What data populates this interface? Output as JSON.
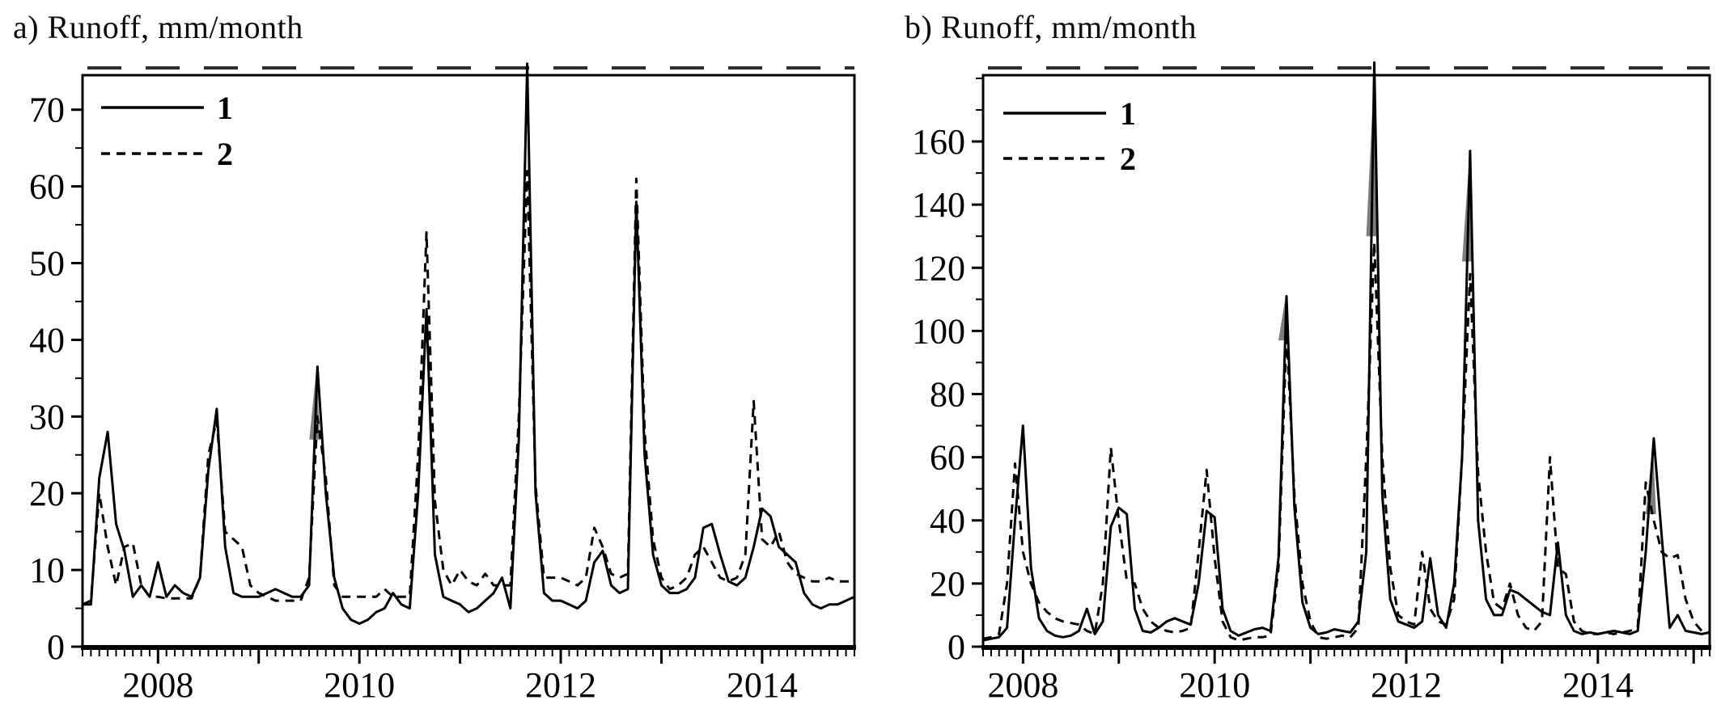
{
  "page": {
    "background": "#ffffff",
    "line_color": "#000000",
    "artifact_color": "#2e2e2e",
    "gray_fill": "#7d7d7d"
  },
  "chart_data": [
    {
      "type": "line",
      "title": "a) Runoff, mm/month",
      "ylabel": "Runoff, mm/month",
      "x_start": 2007.25,
      "x_step_months": 1,
      "x_domain": [
        2007.25,
        2014.917
      ],
      "y_domain": [
        0,
        74.5
      ],
      "y_ticks": [
        0,
        10,
        20,
        30,
        40,
        50,
        60,
        70
      ],
      "y_minor_step": 5,
      "x_year_labels": [
        "2008",
        "2010",
        "2012",
        "2014"
      ],
      "grid": "off",
      "legend_position": "top-left",
      "legend": [
        {
          "label": "1",
          "style": "solid"
        },
        {
          "label": "2",
          "style": "dashed"
        }
      ],
      "series": [
        {
          "name": "1",
          "style": "solid",
          "values": [
            5.5,
            5.5,
            22,
            28,
            16,
            12.5,
            6.5,
            8,
            6.5,
            11,
            6.5,
            8,
            7,
            6.5,
            9,
            23,
            31,
            13,
            7,
            6.5,
            6.5,
            6.5,
            7,
            7.5,
            7,
            6.5,
            6.5,
            8,
            36.5,
            20,
            9,
            5,
            3.5,
            3,
            3.5,
            4.5,
            5,
            7,
            5.5,
            5,
            20,
            44,
            12,
            6.5,
            6,
            5.5,
            4.5,
            5,
            6,
            7,
            9,
            5,
            27,
            76,
            20,
            7,
            6,
            6,
            5.5,
            5,
            6,
            11,
            12.5,
            8,
            7,
            7.5,
            58,
            25,
            12,
            8,
            7,
            7,
            7.5,
            9,
            15.5,
            16,
            12,
            8.5,
            8,
            9,
            13,
            18,
            17,
            13,
            12,
            11,
            7,
            5.5,
            5,
            5.5,
            5.5,
            6,
            6.5
          ]
        },
        {
          "name": "2",
          "style": "dashed",
          "values": [
            5.5,
            6,
            20,
            13,
            8,
            13,
            13.5,
            8,
            6.5,
            6.5,
            6.3,
            6.3,
            6.3,
            6.3,
            9,
            25,
            29.5,
            15,
            14,
            13,
            8,
            7,
            6.5,
            6,
            6,
            6,
            6,
            9,
            30,
            22,
            8,
            6.5,
            6.5,
            6.5,
            6.5,
            6.5,
            7.5,
            6.5,
            6.5,
            6.5,
            25,
            54,
            19,
            10,
            8,
            10,
            8.5,
            8,
            9.5,
            8,
            8,
            8,
            30,
            62,
            21,
            9,
            9,
            9,
            8.5,
            8,
            9,
            15.5,
            13,
            9.5,
            9,
            9.5,
            61,
            28,
            14,
            9,
            7.5,
            8,
            9,
            12,
            13,
            11,
            9,
            8.5,
            9,
            12,
            32,
            14,
            13,
            15,
            11,
            9.5,
            9,
            8.5,
            8.5,
            9,
            8.5,
            8.5,
            8.5
          ]
        }
      ]
    },
    {
      "type": "line",
      "title": "b) Runoff, mm/month",
      "ylabel": "Runoff, mm/month",
      "x_start": 2007.583,
      "x_step_months": 1,
      "x_domain": [
        2007.583,
        2015.167
      ],
      "y_domain": [
        0,
        181
      ],
      "y_ticks": [
        0,
        20,
        40,
        60,
        80,
        100,
        120,
        140,
        160
      ],
      "y_minor_step": 10,
      "x_year_labels": [
        "2008",
        "2010",
        "2012",
        "2014"
      ],
      "grid": "off",
      "legend_position": "top-left",
      "legend": [
        {
          "label": "1",
          "style": "solid"
        },
        {
          "label": "2",
          "style": "dashed"
        }
      ],
      "series": [
        {
          "name": "1",
          "style": "solid",
          "values": [
            2,
            2.5,
            3,
            6,
            40,
            70,
            25,
            9,
            5,
            3.5,
            3,
            3.5,
            5,
            12,
            4,
            8,
            38,
            44,
            42,
            12,
            5,
            4.5,
            6,
            8,
            9,
            8,
            7,
            20,
            43,
            41,
            12,
            5,
            3.5,
            4.5,
            5.5,
            6,
            5,
            28,
            111,
            44,
            14,
            6,
            4,
            4.5,
            5.5,
            5,
            4.5,
            8,
            30,
            185,
            48,
            15,
            8,
            7,
            6,
            8,
            28,
            10,
            6,
            20,
            60,
            157,
            40,
            15,
            10,
            10,
            18,
            17,
            15,
            13,
            11,
            10,
            33,
            10,
            5,
            4,
            4.5,
            4,
            4.5,
            5,
            4.5,
            4,
            5,
            30,
            66,
            35,
            6,
            10,
            5,
            4.5,
            4,
            4.5
          ]
        },
        {
          "name": "2",
          "style": "dashed",
          "values": [
            2.5,
            3,
            4,
            20,
            58,
            30,
            20,
            14,
            11,
            9,
            8,
            7.5,
            7,
            5,
            4,
            20,
            63,
            40,
            21,
            20,
            12,
            8,
            6,
            5,
            4.5,
            5,
            6,
            30,
            56,
            28,
            8,
            3,
            2,
            2.5,
            3,
            3,
            3.5,
            25,
            100,
            48,
            20,
            8,
            3,
            2.5,
            3,
            3.5,
            3,
            6,
            60,
            128,
            60,
            25,
            10,
            8,
            7,
            30,
            12,
            8,
            7,
            15,
            60,
            118,
            55,
            30,
            14,
            12,
            20,
            10,
            6,
            5,
            8,
            60,
            25,
            23,
            8,
            5,
            4,
            4,
            4.5,
            4,
            4.5,
            5,
            6,
            52,
            40,
            30,
            28,
            29,
            15,
            8,
            5,
            4.5
          ]
        }
      ]
    }
  ]
}
